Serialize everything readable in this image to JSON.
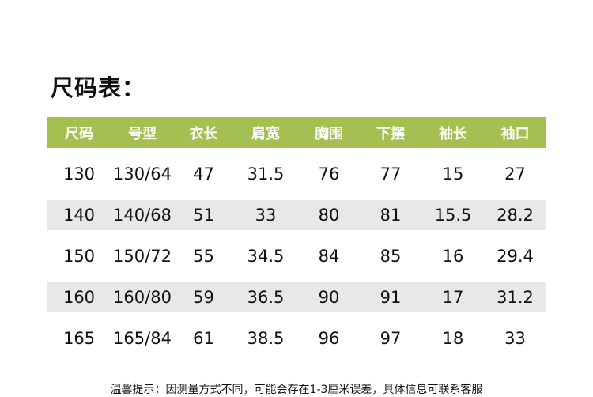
{
  "title": "尺码表：",
  "colors": {
    "header_bg": "#a4c050",
    "alt_row_bg": "#e8e8e8"
  },
  "table": {
    "headers": [
      "尺码",
      "号型",
      "衣长",
      "肩宽",
      "胸围",
      "下摆",
      "袖长",
      "袖口"
    ],
    "rows": [
      [
        "130",
        "130/64",
        "47",
        "31.5",
        "76",
        "77",
        "15",
        "27"
      ],
      [
        "140",
        "140/68",
        "51",
        "33",
        "80",
        "81",
        "15.5",
        "28.2"
      ],
      [
        "150",
        "150/72",
        "55",
        "34.5",
        "84",
        "85",
        "16",
        "29.4"
      ],
      [
        "160",
        "160/80",
        "59",
        "36.5",
        "90",
        "91",
        "17",
        "31.2"
      ],
      [
        "165",
        "165/84",
        "61",
        "38.5",
        "96",
        "97",
        "18",
        "33"
      ]
    ]
  },
  "note": "温馨提示：因测量方式不同，可能会存在1-3厘米误差，具体信息可联系客服"
}
